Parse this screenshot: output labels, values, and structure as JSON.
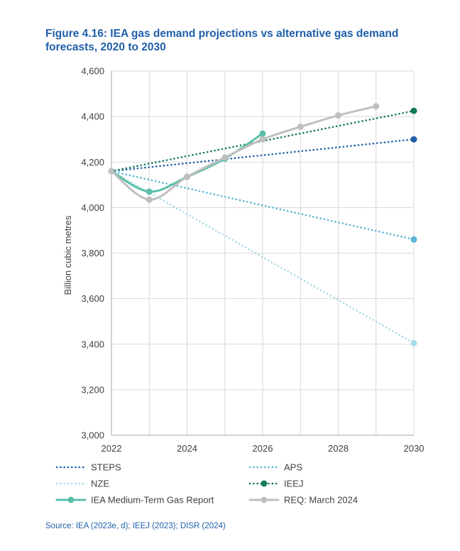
{
  "figure": {
    "title_line1": "Figure 4.16: IEA gas demand projections vs alternative gas demand",
    "title_line2": "forecasts, 2020 to 2030",
    "source": "Source: IEA (2023e, d); IEEJ (2023); DISR (2024)"
  },
  "chart_data": {
    "type": "line",
    "title": "Figure 4.16: IEA gas demand projections vs alternative gas demand forecasts, 2020 to 2030",
    "xlabel": "",
    "ylabel": "Billion cubic metres",
    "xlim": [
      2022,
      2030
    ],
    "ylim": [
      3000,
      4600
    ],
    "x_ticks": [
      2022,
      2024,
      2026,
      2028,
      2030
    ],
    "y_ticks": [
      3000,
      3200,
      3400,
      3600,
      3800,
      4000,
      4200,
      4400,
      4600
    ],
    "y_tick_labels": [
      "3,000",
      "3,200",
      "3,400",
      "3,600",
      "3,800",
      "4,000",
      "4,200",
      "4,400",
      "4,600"
    ],
    "grid": {
      "x": true,
      "y": true
    },
    "legend_position": "bottom",
    "series": [
      {
        "name": "STEPS",
        "style": "dotted",
        "color": "#1f5fa9",
        "end_marker": true,
        "x": [
          2022,
          2030
        ],
        "y": [
          4160,
          4300
        ]
      },
      {
        "name": "APS",
        "style": "dotted",
        "color": "#5ab4d6",
        "end_marker": true,
        "x": [
          2022,
          2030
        ],
        "y": [
          4160,
          3860
        ]
      },
      {
        "name": "NZE",
        "style": "dotted",
        "color": "#a8dbe8",
        "end_marker": true,
        "x": [
          2022,
          2030
        ],
        "y": [
          4160,
          3405
        ]
      },
      {
        "name": "IEEJ",
        "style": "dotted",
        "color": "#137a5e",
        "end_marker": true,
        "x": [
          2022,
          2030
        ],
        "y": [
          4160,
          4425
        ]
      },
      {
        "name": "IEA Medium-Term Gas Report",
        "style": "solid",
        "color": "#5bbfa8",
        "markers": true,
        "x": [
          2022,
          2023,
          2024,
          2025,
          2026
        ],
        "y": [
          4160,
          4070,
          4135,
          4215,
          4325
        ]
      },
      {
        "name": "REQ: March 2024",
        "style": "solid",
        "color": "#bfbfbf",
        "markers": true,
        "x": [
          2022,
          2023,
          2024,
          2025,
          2026,
          2027,
          2028,
          2029
        ],
        "y": [
          4160,
          4035,
          4135,
          4220,
          4300,
          4355,
          4405,
          4445
        ]
      }
    ]
  }
}
